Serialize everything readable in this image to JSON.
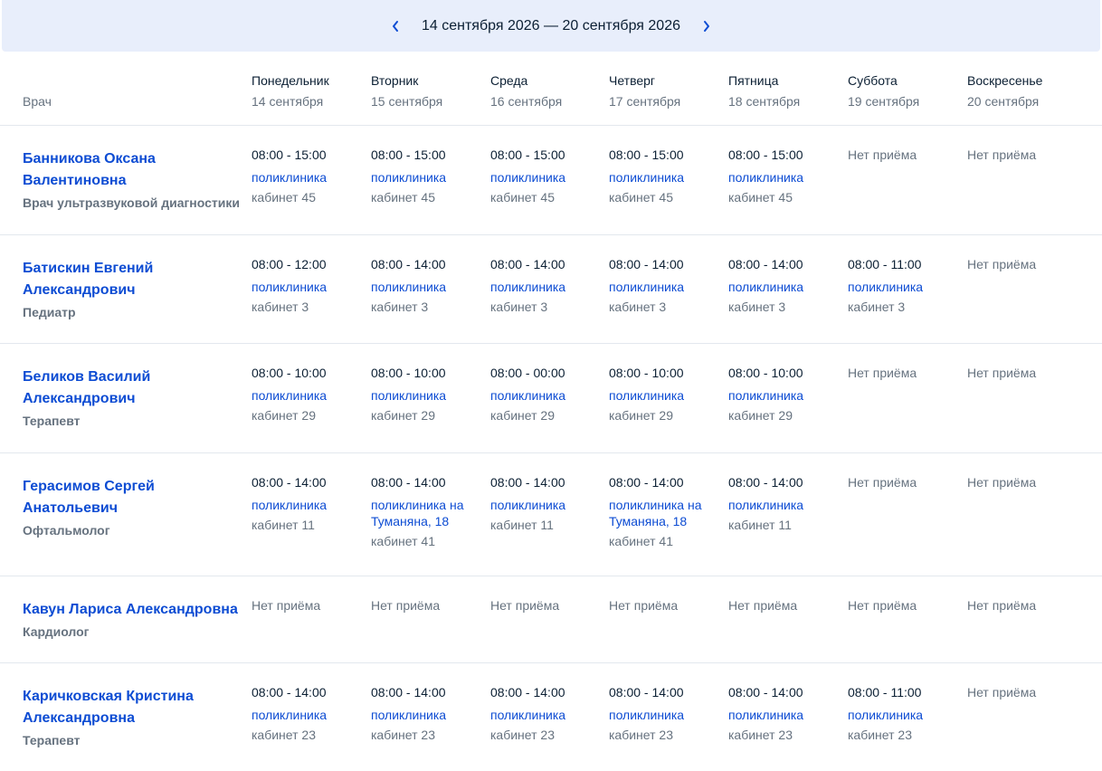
{
  "week": {
    "range": "14 сентября 2026 — 20 сентября 2026",
    "prev_icon": "chevron-left-icon",
    "next_icon": "chevron-right-icon",
    "accent": "#0d4cd3",
    "background": "#e8eefb"
  },
  "header": {
    "doctor": "Врач",
    "days": [
      {
        "name": "Понедельник",
        "date": "14 сентября"
      },
      {
        "name": "Вторник",
        "date": "15 сентября"
      },
      {
        "name": "Среда",
        "date": "16 сентября"
      },
      {
        "name": "Четверг",
        "date": "17 сентября"
      },
      {
        "name": "Пятница",
        "date": "18 сентября"
      },
      {
        "name": "Суббота",
        "date": "19 сентября"
      },
      {
        "name": "Воскресенье",
        "date": "20 сентября"
      }
    ]
  },
  "doctors": [
    {
      "name_lines": [
        "Банникова Оксана",
        "Валентиновна"
      ],
      "specialty": "Врач ультразвуковой диагностики",
      "schedule": [
        {
          "time": "08:00 - 15:00",
          "place_lines": [
            "поликлиника"
          ],
          "room": "кабинет 45"
        },
        {
          "time": "08:00 - 15:00",
          "place_lines": [
            "поликлиника"
          ],
          "room": "кабинет 45"
        },
        {
          "time": "08:00 - 15:00",
          "place_lines": [
            "поликлиника"
          ],
          "room": "кабинет 45"
        },
        {
          "time": "08:00 - 15:00",
          "place_lines": [
            "поликлиника"
          ],
          "room": "кабинет 45"
        },
        {
          "time": "08:00 - 15:00",
          "place_lines": [
            "поликлиника"
          ],
          "room": "кабинет 45"
        },
        {
          "none": "Нет приёма"
        },
        {
          "none": "Нет приёма"
        }
      ]
    },
    {
      "name_lines": [
        "Батискин Евгений",
        "Александрович"
      ],
      "specialty": "Педиатр",
      "schedule": [
        {
          "time": "08:00 - 12:00",
          "place_lines": [
            "поликлиника"
          ],
          "room": "кабинет 3"
        },
        {
          "time": "08:00 - 14:00",
          "place_lines": [
            "поликлиника"
          ],
          "room": "кабинет 3"
        },
        {
          "time": "08:00 - 14:00",
          "place_lines": [
            "поликлиника"
          ],
          "room": "кабинет 3"
        },
        {
          "time": "08:00 - 14:00",
          "place_lines": [
            "поликлиника"
          ],
          "room": "кабинет 3"
        },
        {
          "time": "08:00 - 14:00",
          "place_lines": [
            "поликлиника"
          ],
          "room": "кабинет 3"
        },
        {
          "time": "08:00 - 11:00",
          "place_lines": [
            "поликлиника"
          ],
          "room": "кабинет 3"
        },
        {
          "none": "Нет приёма"
        }
      ]
    },
    {
      "name_lines": [
        "Беликов Василий",
        "Александрович"
      ],
      "specialty": "Терапевт",
      "schedule": [
        {
          "time": "08:00 - 10:00",
          "place_lines": [
            "поликлиника"
          ],
          "room": "кабинет 29"
        },
        {
          "time": "08:00 - 10:00",
          "place_lines": [
            "поликлиника"
          ],
          "room": "кабинет 29"
        },
        {
          "time": "08:00 - 00:00",
          "place_lines": [
            "поликлиника"
          ],
          "room": "кабинет 29"
        },
        {
          "time": "08:00 - 10:00",
          "place_lines": [
            "поликлиника"
          ],
          "room": "кабинет 29"
        },
        {
          "time": "08:00 - 10:00",
          "place_lines": [
            "поликлиника"
          ],
          "room": "кабинет 29"
        },
        {
          "none": "Нет приёма"
        },
        {
          "none": "Нет приёма"
        }
      ]
    },
    {
      "name_lines": [
        "Герасимов Сергей Анатольевич"
      ],
      "specialty": "Офтальмолог",
      "schedule": [
        {
          "time": "08:00 - 14:00",
          "place_lines": [
            "поликлиника"
          ],
          "room": "кабинет 11"
        },
        {
          "time": "08:00 - 14:00",
          "place_lines": [
            "поликлиника на",
            "Туманяна, 18"
          ],
          "room": "кабинет 41"
        },
        {
          "time": "08:00 - 14:00",
          "place_lines": [
            "поликлиника"
          ],
          "room": "кабинет 11"
        },
        {
          "time": "08:00 - 14:00",
          "place_lines": [
            "поликлиника на",
            "Туманяна, 18"
          ],
          "room": "кабинет 41"
        },
        {
          "time": "08:00 - 14:00",
          "place_lines": [
            "поликлиника"
          ],
          "room": "кабинет 11"
        },
        {
          "none": "Нет приёма"
        },
        {
          "none": "Нет приёма"
        }
      ]
    },
    {
      "name_lines": [
        "Кавун Лариса Александровна"
      ],
      "specialty": "Кардиолог",
      "schedule": [
        {
          "none": "Нет приёма"
        },
        {
          "none": "Нет приёма"
        },
        {
          "none": "Нет приёма"
        },
        {
          "none": "Нет приёма"
        },
        {
          "none": "Нет приёма"
        },
        {
          "none": "Нет приёма"
        },
        {
          "none": "Нет приёма"
        }
      ]
    },
    {
      "name_lines": [
        "Каричковская Кристина",
        "Александровна"
      ],
      "specialty": "Терапевт",
      "schedule": [
        {
          "time": "08:00 - 14:00",
          "place_lines": [
            "поликлиника"
          ],
          "room": "кабинет 23"
        },
        {
          "time": "08:00 - 14:00",
          "place_lines": [
            "поликлиника"
          ],
          "room": "кабинет 23"
        },
        {
          "time": "08:00 - 14:00",
          "place_lines": [
            "поликлиника"
          ],
          "room": "кабинет 23"
        },
        {
          "time": "08:00 - 14:00",
          "place_lines": [
            "поликлиника"
          ],
          "room": "кабинет 23"
        },
        {
          "time": "08:00 - 14:00",
          "place_lines": [
            "поликлиника"
          ],
          "room": "кабинет 23"
        },
        {
          "time": "08:00 - 11:00",
          "place_lines": [
            "поликлиника"
          ],
          "room": "кабинет 23"
        },
        {
          "none": "Нет приёма"
        }
      ]
    }
  ]
}
